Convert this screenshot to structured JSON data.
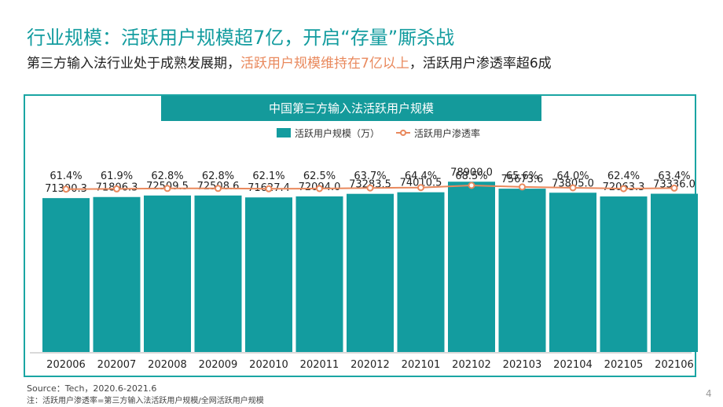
{
  "slide": {
    "title": "行业规模：活跃用户规模超7亿，开启“存量”厮杀战",
    "subtitle_part1": "第三方输入法行业处于成熟发展期，",
    "subtitle_highlight": "活跃用户规模维持在7亿以上",
    "subtitle_part2": "，活跃用户渗透率超6成",
    "source": "Source：Tech，2020.6-2021.6",
    "note": "注：活跃用户渗透率=第三方输入法活跃用户规模/全网活跃用户规模",
    "page_number": "4"
  },
  "colors": {
    "accent": "#149a9b",
    "bar": "#139c9f",
    "line": "#e9895d",
    "highlight": "#e9895d"
  },
  "chart_data": {
    "type": "bar",
    "title": "中国第三方输入法活跃用户规模",
    "categories": [
      "202006",
      "202007",
      "202008",
      "202009",
      "202010",
      "202011",
      "202012",
      "202101",
      "202102",
      "202103",
      "202104",
      "202105",
      "202106"
    ],
    "series": [
      {
        "name": "活跃用户规模（万）",
        "type": "bar",
        "values": [
          71300.3,
          71806.3,
          72509.5,
          72508.6,
          71627.4,
          72094.0,
          73283.5,
          74010.5,
          78900.0,
          75673.6,
          73805.0,
          72063.3,
          73336.0
        ],
        "labels": [
          "71300.3",
          "71806.3",
          "72509.5",
          "72508.6",
          "71627.4",
          "72094.0",
          "73283.5",
          "74010.5",
          "78900.0",
          "75673.6",
          "73805.0",
          "72063.3",
          "73336.0"
        ]
      },
      {
        "name": "活跃用户渗透率",
        "type": "line",
        "values": [
          61.4,
          61.9,
          62.8,
          62.8,
          62.1,
          62.5,
          63.7,
          64.4,
          68.5,
          65.6,
          64.0,
          62.4,
          63.4
        ],
        "labels": [
          "61.4%",
          "61.9%",
          "62.8%",
          "62.8%",
          "62.1%",
          "62.5%",
          "63.7%",
          "64.4%",
          "68.5%",
          "65.6%",
          "64.0%",
          "62.4%",
          "63.4%"
        ]
      }
    ],
    "legend_position": "top",
    "grid": false
  }
}
